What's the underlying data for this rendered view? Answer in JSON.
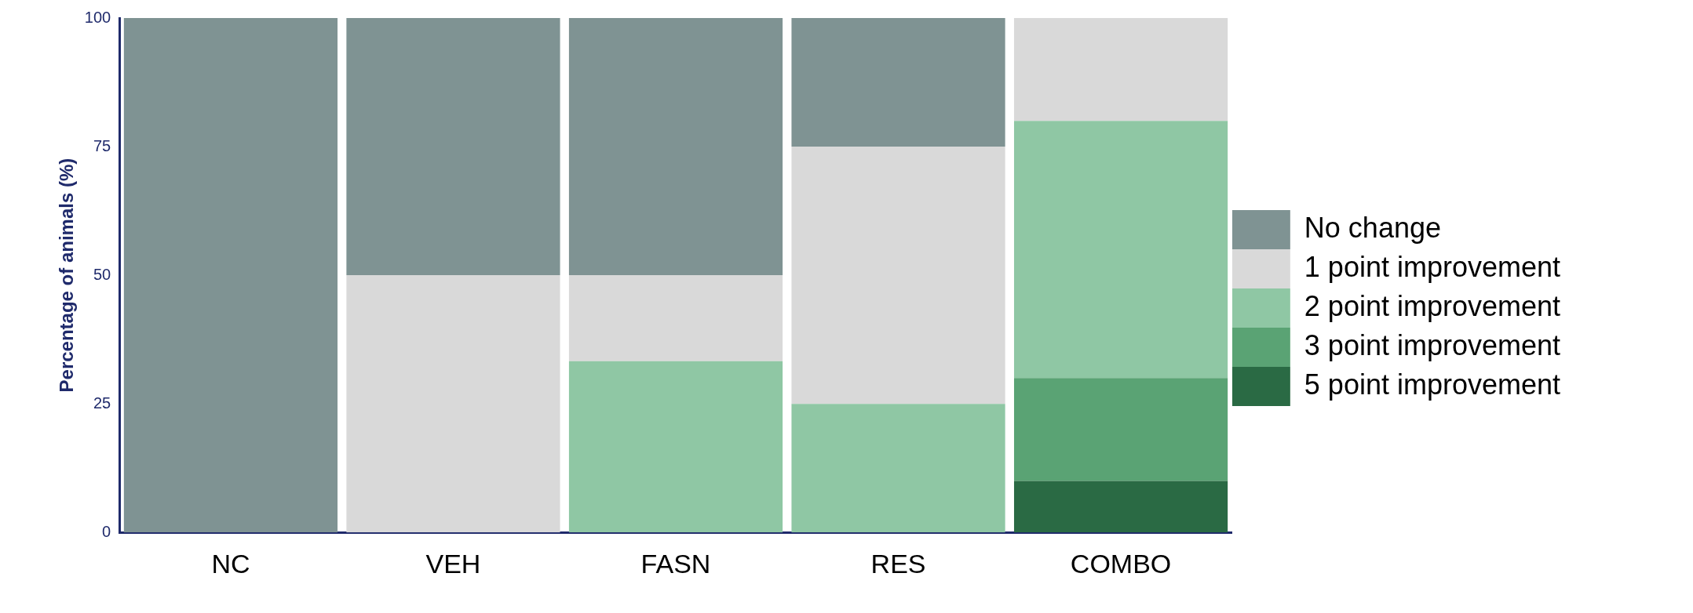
{
  "chart_data": {
    "type": "bar",
    "stacked": true,
    "ylabel": "Percentage of animals (%)",
    "categories": [
      "NC",
      "VEH",
      "FASN",
      "RES",
      "COMBO"
    ],
    "series": [
      {
        "name": "5 point improvement",
        "color": "#2a6a44",
        "values": [
          0,
          0,
          0,
          0,
          10
        ]
      },
      {
        "name": "3 point improvement",
        "color": "#5aa374",
        "values": [
          0,
          0,
          0,
          0,
          20
        ]
      },
      {
        "name": "2 point improvement",
        "color": "#8fc7a4",
        "values": [
          0,
          0,
          33.3,
          25,
          50
        ]
      },
      {
        "name": "1 point improvement",
        "color": "#d9d9d9",
        "values": [
          0,
          50,
          16.7,
          50,
          20
        ]
      },
      {
        "name": "No change",
        "color": "#7f9393",
        "values": [
          100,
          50,
          50,
          25,
          0
        ]
      }
    ],
    "ylim": [
      0,
      100
    ],
    "yticks": [
      0,
      25,
      50,
      75,
      100
    ],
    "legend": "right"
  }
}
